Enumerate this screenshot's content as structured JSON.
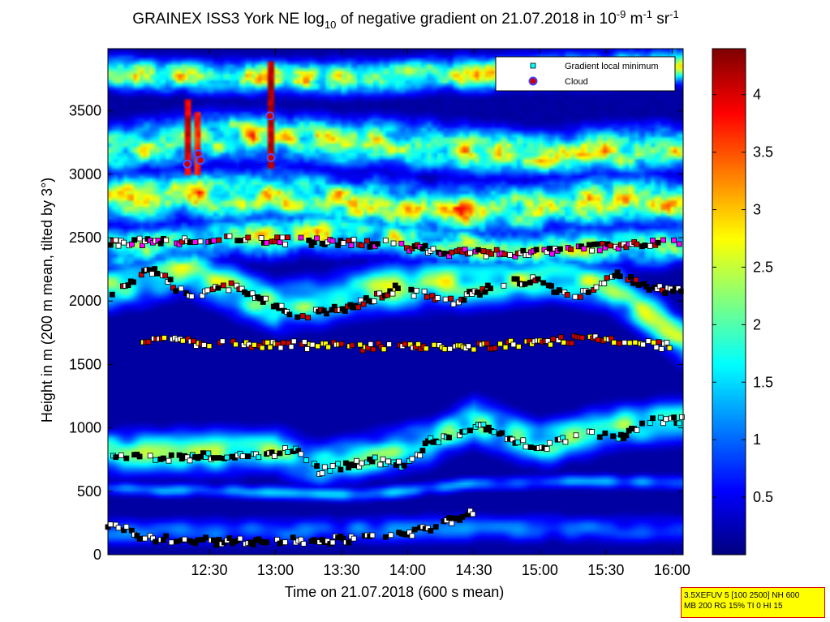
{
  "chart_data": {
    "type": "heatmap",
    "title": {
      "prefix": "GRAINEX ISS3 York NE log",
      "prefix_sub": "10",
      "middle": " of negative gradient on 21.07.2018 in 10",
      "unit_sup1": "-9",
      "unit_mid": " m",
      "unit_sup2": "-1",
      "unit_end": " sr",
      "unit_sup3": "-1"
    },
    "xlabel": "Time on 21.07.2018 (600 s mean)",
    "ylabel": "Height in m (200 m mean, tilted by 3°)",
    "x_ticks": [
      "12:30",
      "13:00",
      "13:30",
      "14:00",
      "14:30",
      "15:00",
      "15:30",
      "16:00"
    ],
    "x_tick_minutes": [
      750,
      780,
      810,
      840,
      870,
      900,
      930,
      960
    ],
    "xlim_minutes": [
      704,
      965
    ],
    "y_ticks": [
      "0",
      "500",
      "1000",
      "1500",
      "2000",
      "2500",
      "3000",
      "3500"
    ],
    "y_tick_values": [
      0,
      500,
      1000,
      1500,
      2000,
      2500,
      3000,
      3500
    ],
    "ylim": [
      0,
      3990
    ],
    "colorbar": {
      "ticks": [
        "0.5",
        "1",
        "1.5",
        "2",
        "2.5",
        "3",
        "3.5",
        "4"
      ],
      "tick_values": [
        0.5,
        1,
        1.5,
        2,
        2.5,
        3,
        3.5,
        4
      ],
      "range": [
        0,
        4.4
      ],
      "colormap": "jet"
    },
    "legend": {
      "position": "top-right",
      "entries": [
        {
          "label": "Gradient local minimum",
          "marker": "square",
          "color": "#00ffff"
        },
        {
          "label": "Cloud",
          "marker": "circle",
          "color": "#cc0000",
          "edge": "#4444ff"
        }
      ]
    },
    "layers": [
      {
        "name": "surface-layer",
        "y_points": [
          [
            704,
            180
          ],
          [
            800,
            190
          ],
          [
            870,
            210
          ],
          [
            965,
            200
          ]
        ],
        "thickness": 170,
        "value": 1.0
      },
      {
        "name": "lower-band",
        "y_points": [
          [
            704,
            520
          ],
          [
            760,
            500
          ],
          [
            820,
            470
          ],
          [
            870,
            560
          ],
          [
            920,
            580
          ],
          [
            965,
            570
          ]
        ],
        "thickness": 90,
        "value": 1.2
      },
      {
        "name": "boundary-layer-top",
        "y_points": [
          [
            704,
            800
          ],
          [
            780,
            820
          ],
          [
            800,
            700
          ],
          [
            850,
            880
          ],
          [
            870,
            1050
          ],
          [
            900,
            870
          ],
          [
            930,
            1000
          ],
          [
            965,
            1050
          ]
        ],
        "thickness": 260,
        "value": 2.0
      },
      {
        "name": "residual-layer",
        "y_points": [
          [
            704,
            2100
          ],
          [
            740,
            2250
          ],
          [
            780,
            1950
          ],
          [
            830,
            2100
          ],
          [
            870,
            2150
          ],
          [
            900,
            2200
          ],
          [
            930,
            2150
          ],
          [
            965,
            1700
          ]
        ],
        "thickness": 280,
        "value": 2.3
      },
      {
        "name": "upper-layer-1",
        "y_points": [
          [
            704,
            2400
          ],
          [
            760,
            2500
          ],
          [
            820,
            2550
          ],
          [
            880,
            2400
          ],
          [
            965,
            2450
          ]
        ],
        "thickness": 250,
        "value": 2.2
      },
      {
        "name": "upper-layer-2",
        "y_points": [
          [
            704,
            2800
          ],
          [
            780,
            2850
          ],
          [
            860,
            2700
          ],
          [
            940,
            2800
          ],
          [
            965,
            2750
          ]
        ],
        "thickness": 300,
        "value": 2.6
      },
      {
        "name": "upper-layer-3",
        "y_points": [
          [
            704,
            3200
          ],
          [
            760,
            3300
          ],
          [
            820,
            3250
          ],
          [
            900,
            3150
          ],
          [
            965,
            3200
          ]
        ],
        "thickness": 280,
        "value": 2.5
      },
      {
        "name": "top-layer",
        "y_points": [
          [
            704,
            3800
          ],
          [
            800,
            3750
          ],
          [
            880,
            3800
          ],
          [
            965,
            3850
          ]
        ],
        "thickness": 200,
        "value": 2.4
      }
    ],
    "cloud_streaks": [
      {
        "x_min": 740.5,
        "y_bottom": 3000,
        "y_top": 3600,
        "value": 4.3
      },
      {
        "x_min": 744.5,
        "y_bottom": 3000,
        "y_top": 3500,
        "value": 4.0
      },
      {
        "x_min": 777.5,
        "y_bottom": 3050,
        "y_top": 3900,
        "value": 4.4
      }
    ],
    "clouds": [
      {
        "x": 740.0,
        "y": 3080
      },
      {
        "x": 745.0,
        "y": 3160
      },
      {
        "x": 746.0,
        "y": 3110
      },
      {
        "x": 777.5,
        "y": 3460
      },
      {
        "x": 778.0,
        "y": 3130
      }
    ],
    "gradient_minimum_tracks": [
      {
        "name": "surface-track",
        "points": [
          [
            704,
            230
          ],
          [
            710,
            220
          ],
          [
            720,
            130
          ],
          [
            755,
            100
          ],
          [
            800,
            110
          ],
          [
            830,
            140
          ],
          [
            850,
            200
          ],
          [
            870,
            340
          ]
        ],
        "color_mix": "black-white"
      },
      {
        "name": "boundary-track",
        "points": [
          [
            704,
            790
          ],
          [
            720,
            760
          ],
          [
            760,
            780
          ],
          [
            790,
            820
          ],
          [
            800,
            660
          ],
          [
            825,
            740
          ],
          [
            840,
            700
          ],
          [
            850,
            890
          ],
          [
            865,
            960
          ],
          [
            875,
            1020
          ],
          [
            890,
            880
          ],
          [
            905,
            860
          ],
          [
            920,
            990
          ],
          [
            935,
            900
          ],
          [
            950,
            1050
          ],
          [
            965,
            1060
          ]
        ],
        "color_mix": "black-white-cyan"
      },
      {
        "name": "residual-track",
        "points": [
          [
            706,
            2080
          ],
          [
            725,
            2250
          ],
          [
            740,
            2030
          ],
          [
            760,
            2120
          ],
          [
            790,
            1880
          ],
          [
            815,
            1950
          ],
          [
            835,
            2100
          ],
          [
            860,
            2000
          ],
          [
            885,
            2150
          ],
          [
            900,
            2170
          ],
          [
            915,
            2000
          ],
          [
            935,
            2230
          ],
          [
            950,
            2100
          ],
          [
            965,
            2080
          ]
        ],
        "color_mix": "black-red-white"
      },
      {
        "name": "upper-track",
        "points": [
          [
            704,
            2460
          ],
          [
            740,
            2470
          ],
          [
            760,
            2490
          ],
          [
            830,
            2450
          ],
          [
            860,
            2380
          ],
          [
            900,
            2380
          ],
          [
            940,
            2450
          ],
          [
            965,
            2460
          ]
        ],
        "color_mix": "red-white-magenta"
      },
      {
        "name": "mid-track",
        "points": [
          [
            720,
            1700
          ],
          [
            760,
            1660
          ],
          [
            800,
            1650
          ],
          [
            840,
            1630
          ],
          [
            880,
            1650
          ],
          [
            920,
            1700
          ],
          [
            960,
            1640
          ]
        ],
        "color_mix": "red-white-yellow"
      }
    ]
  },
  "info_box": {
    "line1": "3.5XEFUV 5 [100 2500] NH 600",
    "line2": "MB 200 RG 15% TI 0 HI 15"
  }
}
